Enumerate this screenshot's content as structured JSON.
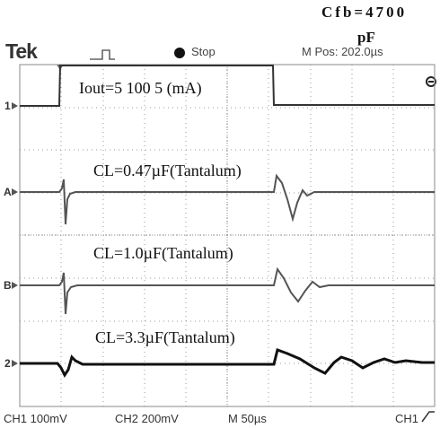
{
  "header": {
    "cfb_line1": "Cfb=4700",
    "cfb_line2": "pF",
    "brand": "Tek",
    "run_state": "Stop",
    "position_label": "M Pos: 202.0µs",
    "expand_icon": "trigger-position-icon"
  },
  "annotations": {
    "iout": "Iout=5   100   5 (mA)",
    "cl_a": "CL=0.47µF(Tantalum)",
    "cl_b": "CL=1.0µF(Tantalum)",
    "cl_2": "CL=3.3µF(Tantalum)"
  },
  "channel_markers": {
    "ch1": "1",
    "math_a": "A",
    "math_b": "B",
    "ch2": "2"
  },
  "footer": {
    "ch1_scale": "CH1  100mV",
    "ch2_scale": "CH2  200mV",
    "timebase": "M  50µs",
    "trigger_source": "CH1",
    "trigger_slope_icon": "rising-edge-icon"
  },
  "colors": {
    "trace": "#444444",
    "trace_dark": "#111111",
    "grid": "#9a9a9a"
  }
}
